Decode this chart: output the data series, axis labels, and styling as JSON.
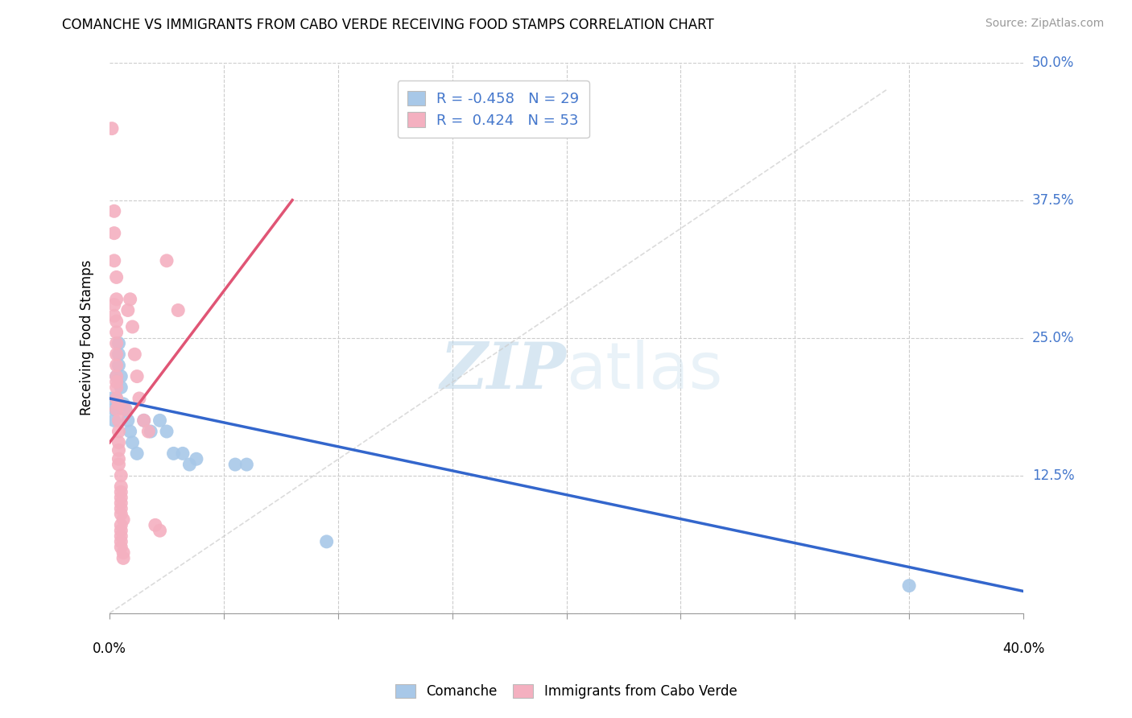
{
  "title": "COMANCHE VS IMMIGRANTS FROM CABO VERDE RECEIVING FOOD STAMPS CORRELATION CHART",
  "source": "Source: ZipAtlas.com",
  "ylabel": "Receiving Food Stamps",
  "ytick_labels": [
    "",
    "12.5%",
    "25.0%",
    "37.5%",
    "50.0%"
  ],
  "ytick_values": [
    0.0,
    0.125,
    0.25,
    0.375,
    0.5
  ],
  "xmin": 0.0,
  "xmax": 0.4,
  "ymin": 0.0,
  "ymax": 0.5,
  "R_blue": -0.458,
  "N_blue": 29,
  "R_pink": 0.424,
  "N_pink": 53,
  "blue_color": "#a8c8e8",
  "pink_color": "#f4b0c0",
  "blue_line_color": "#3366cc",
  "pink_line_color": "#e05575",
  "legend_label_blue": "Comanche",
  "legend_label_pink": "Immigrants from Cabo Verde",
  "watermark_zip": "ZIP",
  "watermark_atlas": "atlas",
  "blue_dots": [
    [
      0.001,
      0.195
    ],
    [
      0.002,
      0.185
    ],
    [
      0.002,
      0.175
    ],
    [
      0.003,
      0.215
    ],
    [
      0.003,
      0.195
    ],
    [
      0.003,
      0.185
    ],
    [
      0.004,
      0.245
    ],
    [
      0.004,
      0.235
    ],
    [
      0.004,
      0.225
    ],
    [
      0.005,
      0.215
    ],
    [
      0.005,
      0.205
    ],
    [
      0.006,
      0.19
    ],
    [
      0.007,
      0.185
    ],
    [
      0.008,
      0.175
    ],
    [
      0.009,
      0.165
    ],
    [
      0.01,
      0.155
    ],
    [
      0.012,
      0.145
    ],
    [
      0.015,
      0.175
    ],
    [
      0.018,
      0.165
    ],
    [
      0.022,
      0.175
    ],
    [
      0.025,
      0.165
    ],
    [
      0.028,
      0.145
    ],
    [
      0.032,
      0.145
    ],
    [
      0.035,
      0.135
    ],
    [
      0.038,
      0.14
    ],
    [
      0.055,
      0.135
    ],
    [
      0.06,
      0.135
    ],
    [
      0.095,
      0.065
    ],
    [
      0.35,
      0.025
    ]
  ],
  "pink_dots": [
    [
      0.001,
      0.44
    ],
    [
      0.002,
      0.365
    ],
    [
      0.002,
      0.345
    ],
    [
      0.002,
      0.32
    ],
    [
      0.003,
      0.305
    ],
    [
      0.003,
      0.285
    ],
    [
      0.002,
      0.28
    ],
    [
      0.002,
      0.27
    ],
    [
      0.003,
      0.265
    ],
    [
      0.003,
      0.255
    ],
    [
      0.003,
      0.245
    ],
    [
      0.003,
      0.235
    ],
    [
      0.003,
      0.225
    ],
    [
      0.003,
      0.215
    ],
    [
      0.003,
      0.21
    ],
    [
      0.003,
      0.205
    ],
    [
      0.003,
      0.195
    ],
    [
      0.004,
      0.19
    ],
    [
      0.003,
      0.185
    ],
    [
      0.004,
      0.175
    ],
    [
      0.004,
      0.165
    ],
    [
      0.004,
      0.155
    ],
    [
      0.004,
      0.148
    ],
    [
      0.004,
      0.14
    ],
    [
      0.004,
      0.135
    ],
    [
      0.005,
      0.125
    ],
    [
      0.005,
      0.115
    ],
    [
      0.005,
      0.11
    ],
    [
      0.005,
      0.105
    ],
    [
      0.005,
      0.1
    ],
    [
      0.005,
      0.095
    ],
    [
      0.005,
      0.09
    ],
    [
      0.006,
      0.085
    ],
    [
      0.005,
      0.08
    ],
    [
      0.005,
      0.075
    ],
    [
      0.005,
      0.07
    ],
    [
      0.005,
      0.065
    ],
    [
      0.005,
      0.06
    ],
    [
      0.006,
      0.055
    ],
    [
      0.006,
      0.05
    ],
    [
      0.007,
      0.185
    ],
    [
      0.008,
      0.275
    ],
    [
      0.009,
      0.285
    ],
    [
      0.01,
      0.26
    ],
    [
      0.011,
      0.235
    ],
    [
      0.012,
      0.215
    ],
    [
      0.013,
      0.195
    ],
    [
      0.015,
      0.175
    ],
    [
      0.017,
      0.165
    ],
    [
      0.02,
      0.08
    ],
    [
      0.022,
      0.075
    ],
    [
      0.025,
      0.32
    ],
    [
      0.03,
      0.275
    ]
  ]
}
